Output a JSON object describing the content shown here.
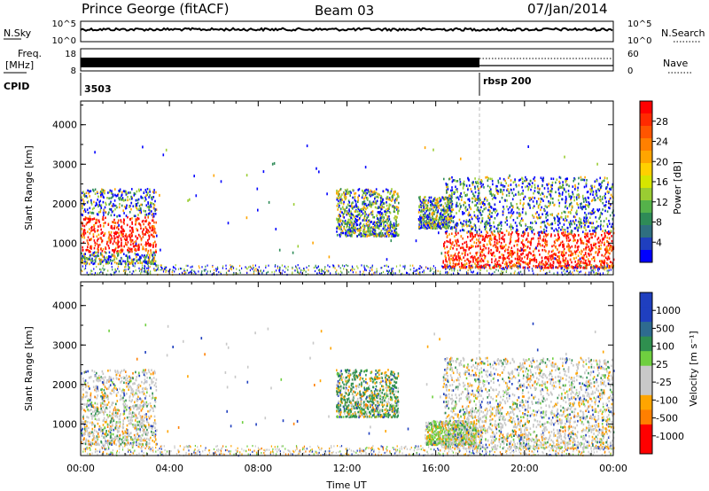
{
  "header": {
    "station": "Prince George (fitACF)",
    "beam": "Beam 03",
    "date": "07/Jan/2014"
  },
  "noise_panel": {
    "left_label": "N.Sky",
    "left_ticks": [
      "10^5",
      "10^0"
    ],
    "right_ticks": [
      "10^5",
      "10^0"
    ],
    "right_label": "N.Search",
    "n_sky_level": 0.6,
    "n_search_level": 0.7
  },
  "freq_panel": {
    "left_label_1": "Freq.",
    "left_label_2": "[MHz]",
    "left_ticks": [
      "18",
      "8"
    ],
    "right_ticks": [
      "60",
      "0"
    ],
    "right_label": "Nave",
    "freq_level": 0.55,
    "nave_level_before": 0.5,
    "nave_level_after": 0.2,
    "nave_dotted_level": 0.75
  },
  "cpid": {
    "label": "CPID",
    "entries": [
      {
        "text": "3503",
        "start_hour": 0
      },
      {
        "text": "rbsp 200",
        "start_hour": 18
      }
    ]
  },
  "x_axis": {
    "label": "Time UT",
    "min_hour": 0,
    "max_hour": 24,
    "ticks": [
      "00:00",
      "04:00",
      "08:00",
      "12:00",
      "16:00",
      "20:00",
      "00:00"
    ]
  },
  "power_panel": {
    "ylabel": "Slant Range [km]",
    "yticks": [
      "4000",
      "3000",
      "2000",
      "1000"
    ],
    "ymin": 200,
    "ymax": 4600,
    "colorbar_label": "Power [dB]",
    "colorbar_ticks": [
      "28",
      "24",
      "20",
      "16",
      "12",
      "8",
      "4"
    ]
  },
  "velocity_panel": {
    "ylabel": "Slant Range [km]",
    "yticks": [
      "4000",
      "3000",
      "2000",
      "1000"
    ],
    "ymin": 200,
    "ymax": 4600,
    "colorbar_label": "Velocity [m s⁻¹]",
    "colorbar_ticks": [
      "1000",
      "500",
      "100",
      "25",
      "-25",
      "-100",
      "-500",
      "-1000"
    ]
  },
  "chart_data": [
    {
      "type": "heatmap",
      "title": "Power",
      "xlabel": "Time UT",
      "ylabel": "Slant Range [km]",
      "colorbar": "Power [dB]",
      "xlim_hours": [
        0,
        24
      ],
      "ylim": [
        200,
        4600
      ],
      "colorbar_ticks_db": [
        4,
        8,
        12,
        16,
        20,
        24,
        28
      ],
      "colors": {
        "low": "#0000ff",
        "mid_low": "#2e8b57",
        "mid": "#9acd32",
        "mid_high": "#ffa500",
        "high": "#ff0000"
      },
      "scatter_regions": [
        {
          "t0": 0.0,
          "t1": 3.4,
          "r0": 500,
          "r1": 2400,
          "core_r0": 800,
          "core_r1": 1700,
          "core": "high"
        },
        {
          "t0": 11.5,
          "t1": 14.3,
          "r0": 1200,
          "r1": 2400,
          "core": "mid"
        },
        {
          "t0": 15.2,
          "t1": 16.7,
          "r0": 1400,
          "r1": 2200,
          "core": "mid"
        },
        {
          "t0": 16.3,
          "t1": 24.0,
          "r0": 400,
          "r1": 2700,
          "core_r0": 350,
          "core_r1": 1300,
          "core": "high"
        }
      ]
    },
    {
      "type": "heatmap",
      "title": "Velocity",
      "xlabel": "Time UT",
      "ylabel": "Slant Range [km]",
      "colorbar": "Velocity [m s⁻¹]",
      "xlim_hours": [
        0,
        24
      ],
      "ylim": [
        200,
        4600
      ],
      "colorbar_ticks": [
        -1000,
        -500,
        -100,
        -25,
        25,
        100,
        500,
        1000
      ],
      "colors": {
        "pos_high": "#1f3fbf",
        "pos_mid": "#2e6b8f",
        "pos_low": "#2f8f4f",
        "pos_small": "#6fcf3f",
        "near_zero": "#c8c8c8",
        "neg_small": "#ffa500",
        "neg_mid": "#ff7f00",
        "neg_high": "#ff0000"
      },
      "scatter_regions": [
        {
          "t0": 0.0,
          "t1": 3.4,
          "r0": 500,
          "r1": 2400,
          "core": "near_zero"
        },
        {
          "t0": 11.5,
          "t1": 14.3,
          "r0": 1200,
          "r1": 2400,
          "core": "pos_low"
        },
        {
          "t0": 15.5,
          "t1": 17.8,
          "r0": 500,
          "r1": 1100,
          "core": "pos_small"
        },
        {
          "t0": 16.3,
          "t1": 24.0,
          "r0": 400,
          "r1": 2700,
          "core": "near_zero"
        }
      ]
    }
  ]
}
